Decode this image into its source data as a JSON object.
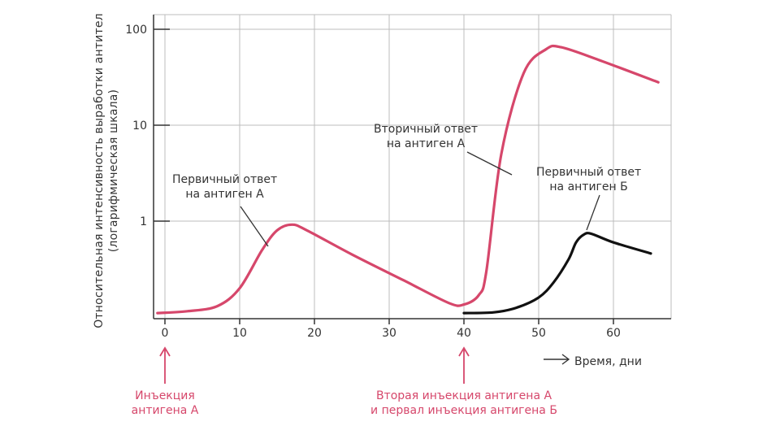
{
  "chart_data": {
    "type": "line",
    "title": "",
    "ylabel": [
      "Относительная интенсивность выработки антител",
      "(логарифмическая шкала)"
    ],
    "xlabel": "Время, дни",
    "y_scale": "log",
    "y_ticks": [
      1,
      10,
      100
    ],
    "y_tick_labels": [
      "1",
      "10",
      "100"
    ],
    "x_ticks": [
      0,
      10,
      20,
      30,
      40,
      50,
      60
    ],
    "x_tick_labels": [
      "0",
      "10",
      "20",
      "30",
      "40",
      "50",
      "60"
    ],
    "xlim": [
      -2,
      67
    ],
    "ylim": [
      0.085,
      155
    ],
    "grid": true,
    "series": [
      {
        "color": "#d6476b",
        "x": [
          -1,
          3,
          7,
          10,
          13,
          15,
          17,
          19,
          25,
          32,
          38,
          40,
          42,
          43,
          45,
          48,
          51,
          53,
          58,
          66
        ],
        "y": [
          0.11,
          0.115,
          0.13,
          0.2,
          0.5,
          0.8,
          0.92,
          0.8,
          0.45,
          0.24,
          0.14,
          0.135,
          0.17,
          0.3,
          5,
          35,
          62,
          65,
          48,
          28
        ]
      },
      {
        "color": "#111111",
        "x": [
          40,
          44,
          47,
          50,
          52,
          54,
          55,
          56,
          57,
          60,
          65
        ],
        "y": [
          0.11,
          0.112,
          0.125,
          0.16,
          0.23,
          0.4,
          0.6,
          0.72,
          0.74,
          0.6,
          0.46
        ]
      }
    ],
    "annotations": [
      {
        "lines": [
          "Первичный ответ",
          "на антиген А"
        ]
      },
      {
        "lines": [
          "Вторичный ответ",
          "на антиген А"
        ]
      },
      {
        "lines": [
          "Первичный ответ",
          "на антиген Б"
        ]
      }
    ],
    "markers": [
      {
        "x": 0,
        "lines": [
          "Инъекция",
          "антигена А"
        ],
        "color": "#d6476b"
      },
      {
        "x": 40,
        "lines": [
          "Вторая инъекция антигена А",
          "и первал инъекция антигена Б"
        ],
        "color": "#d6476b"
      }
    ],
    "colors": {
      "primary": "#d6476b",
      "secondary": "#111111",
      "grid": "#bcbcbc",
      "axis": "#333333"
    }
  }
}
